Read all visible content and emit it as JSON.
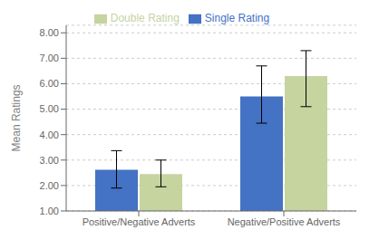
{
  "chart_data": {
    "type": "bar",
    "categories": [
      "Positive/Negative Adverts",
      "Negative/Positive Adverts"
    ],
    "ylabel": "Mean Ratings",
    "series": [
      {
        "name": "Single Rating",
        "color": "#4472C4",
        "values": [
          2.62,
          5.5
        ],
        "error_lower": [
          0.72,
          1.05
        ],
        "error_upper": [
          0.75,
          1.2
        ]
      },
      {
        "name": "Double Rating",
        "color": "#C6D4A0",
        "values": [
          2.45,
          6.3
        ],
        "error_lower": [
          0.5,
          1.2
        ],
        "error_upper": [
          0.55,
          1.0
        ]
      }
    ],
    "ylim": [
      1.0,
      8.3
    ],
    "yticks": [
      {
        "value": 1.0,
        "label": "1.00"
      },
      {
        "value": 2.0,
        "label": "2.00"
      },
      {
        "value": 3.0,
        "label": "3.00"
      },
      {
        "value": 4.0,
        "label": "4.00"
      },
      {
        "value": 5.0,
        "label": "5.00"
      },
      {
        "value": 6.0,
        "label": "6.00"
      },
      {
        "value": 7.0,
        "label": "7.00"
      },
      {
        "value": 8.0,
        "label": "8.00"
      }
    ],
    "grid": true,
    "legend": "top"
  }
}
